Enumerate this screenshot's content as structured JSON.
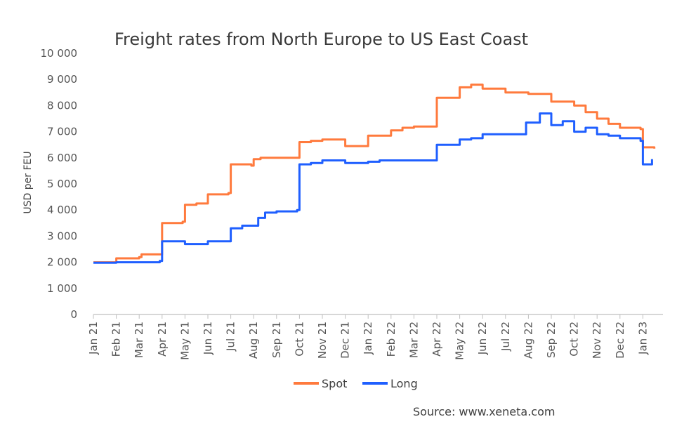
{
  "chart_data": {
    "type": "line",
    "title": "Freight rates from North Europe to US East Coast",
    "ylabel": "USD per FEU",
    "xlabel": "",
    "ylim": [
      0,
      10000
    ],
    "yticks": [
      "0",
      "1 000",
      "2 000",
      "3 000",
      "4 000",
      "5 000",
      "6 000",
      "7 000",
      "8 000",
      "9 000",
      "10 000"
    ],
    "categories": [
      "Jan 21",
      "Feb 21",
      "Mar 21",
      "Apr 21",
      "May 21",
      "Jun 21",
      "Jul 21",
      "Aug 21",
      "Sep 21",
      "Oct 21",
      "Nov 21",
      "Dec 21",
      "Jan 22",
      "Feb 22",
      "Mar 22",
      "Apr 22",
      "May 22",
      "Jun 22",
      "Jul 22",
      "Aug 22",
      "Sep 22",
      "Oct 22",
      "Nov 22",
      "Dec 22",
      "Jan 23"
    ],
    "grid": false,
    "legend_position": "bottom",
    "source": "Source: www.xeneta.com",
    "series": [
      {
        "name": "Spot",
        "color": "#ff7a3d",
        "x": [
          0,
          0.9,
          1.0,
          2.0,
          2.1,
          2.9,
          3.0,
          3.9,
          4.0,
          4.5,
          5.0,
          5.9,
          6.0,
          6.9,
          7.0,
          7.3,
          8.0,
          9.0,
          9.5,
          10.0,
          10.5,
          11.0,
          12.0,
          12.5,
          13.0,
          13.5,
          14.0,
          14.5,
          15.0,
          16.0,
          16.5,
          17.0,
          17.5,
          18.0,
          18.5,
          19.0,
          20.0,
          20.5,
          21.0,
          21.5,
          22.0,
          22.5,
          23.0,
          23.9,
          24.0,
          24.5
        ],
        "y": [
          2000,
          2000,
          2150,
          2200,
          2300,
          2300,
          3500,
          3550,
          4200,
          4250,
          4600,
          4650,
          5750,
          5700,
          5950,
          6000,
          6000,
          6600,
          6650,
          6700,
          6700,
          6450,
          6850,
          6850,
          7050,
          7150,
          7200,
          7200,
          8300,
          8700,
          8800,
          8650,
          8650,
          8500,
          8500,
          8450,
          8150,
          8150,
          8000,
          7750,
          7500,
          7300,
          7150,
          7100,
          6400,
          6350
        ]
      },
      {
        "name": "Long",
        "color": "#1f5fff",
        "x": [
          0,
          1.0,
          2.0,
          2.9,
          3.0,
          3.5,
          4.0,
          5.0,
          5.9,
          6.0,
          6.5,
          7.0,
          7.2,
          7.5,
          8.0,
          8.9,
          9.0,
          9.5,
          10.0,
          11.0,
          12.0,
          12.5,
          13.0,
          14.0,
          14.9,
          15.0,
          15.5,
          16.0,
          16.5,
          17.0,
          18.0,
          18.9,
          19.0,
          19.5,
          20.0,
          20.5,
          21.0,
          21.5,
          22.0,
          22.5,
          23.0,
          23.9,
          24.0,
          24.4
        ],
        "y": [
          1980,
          2000,
          2000,
          2050,
          2800,
          2800,
          2700,
          2800,
          2800,
          3300,
          3400,
          3400,
          3700,
          3900,
          3950,
          4000,
          5750,
          5800,
          5900,
          5800,
          5850,
          5900,
          5900,
          5900,
          5900,
          6500,
          6500,
          6700,
          6750,
          6900,
          6900,
          7350,
          7350,
          7700,
          7250,
          7400,
          7000,
          7150,
          6900,
          6850,
          6750,
          6650,
          5750,
          5950
        ]
      }
    ]
  }
}
